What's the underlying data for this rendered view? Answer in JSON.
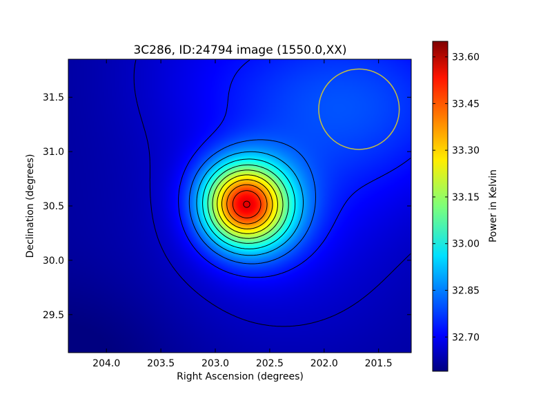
{
  "chart_data": {
    "type": "heatmap",
    "title": "3C286, ID:24794 image (1550.0,XX)",
    "xlabel": "Right Ascension (degrees)",
    "ylabel": "Declination (degrees)",
    "xlim": [
      204.35,
      201.2
    ],
    "ylim": [
      29.15,
      31.85
    ],
    "x_ticks": [
      204.0,
      203.5,
      203.0,
      202.5,
      202.0,
      201.5
    ],
    "x_tick_labels": [
      "204.0",
      "203.5",
      "203.0",
      "202.5",
      "202.0",
      "201.5"
    ],
    "y_ticks": [
      29.5,
      30.0,
      30.5,
      31.0,
      31.5
    ],
    "y_tick_labels": [
      "29.5",
      "30.0",
      "30.5",
      "31.0",
      "31.5"
    ],
    "colormap": "jet",
    "colorbar": {
      "label": "Power in Kelvin",
      "min": 32.59,
      "max": 33.65,
      "ticks": [
        32.7,
        32.85,
        33.0,
        33.15,
        33.3,
        33.45,
        33.6
      ],
      "tick_labels": [
        "32.70",
        "32.85",
        "33.00",
        "33.15",
        "33.30",
        "33.45",
        "33.60"
      ]
    },
    "peak": {
      "ra": 202.73,
      "dec": 30.51,
      "value": 33.65
    },
    "beam_circle": {
      "ra": 201.68,
      "dec": 31.39,
      "radius_deg": 0.37,
      "color": "#c8c03c"
    },
    "contour_color": "#000000"
  }
}
